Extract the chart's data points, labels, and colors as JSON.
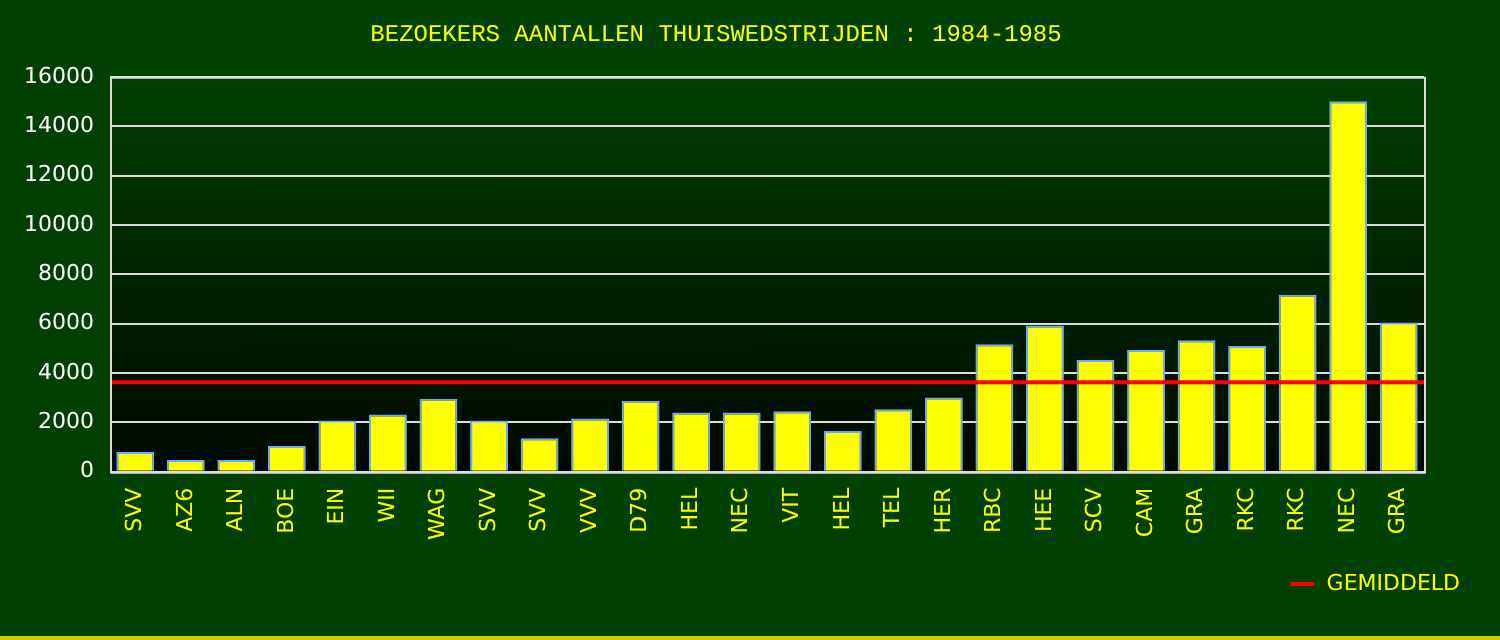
{
  "chart_data": {
    "type": "bar",
    "title": "BEZOEKERS AANTALLEN THUISWEDSTRIJDEN : 1984-1985",
    "categories": [
      "SVV",
      "AZ6",
      "ALN",
      "BOE",
      "EIN",
      "WII",
      "WAG",
      "SVV",
      "SVV",
      "VVV",
      "D79",
      "HEL",
      "NEC",
      "VIT",
      "HEL",
      "TEL",
      "HER",
      "RBC",
      "HEE",
      "SCV",
      "CAM",
      "GRA",
      "RKC",
      "RKC",
      "NEC",
      "GRA"
    ],
    "values": [
      800,
      480,
      480,
      1040,
      2080,
      2320,
      2960,
      2080,
      1360,
      2160,
      2880,
      2400,
      2400,
      2450,
      1650,
      2530,
      3010,
      5170,
      5920,
      4530,
      4930,
      5330,
      5090,
      7170,
      15010,
      6050
    ],
    "color": "#ffff00",
    "ylim": [
      0,
      16000
    ],
    "yticks": [
      0,
      2000,
      4000,
      6000,
      8000,
      10000,
      12000,
      14000,
      16000
    ],
    "grid": "y",
    "ref_lines": [
      {
        "axis": "y",
        "value": 3630,
        "label": "GEMIDDELD",
        "color": "#ff0000"
      }
    ],
    "legend": "bottom right"
  }
}
